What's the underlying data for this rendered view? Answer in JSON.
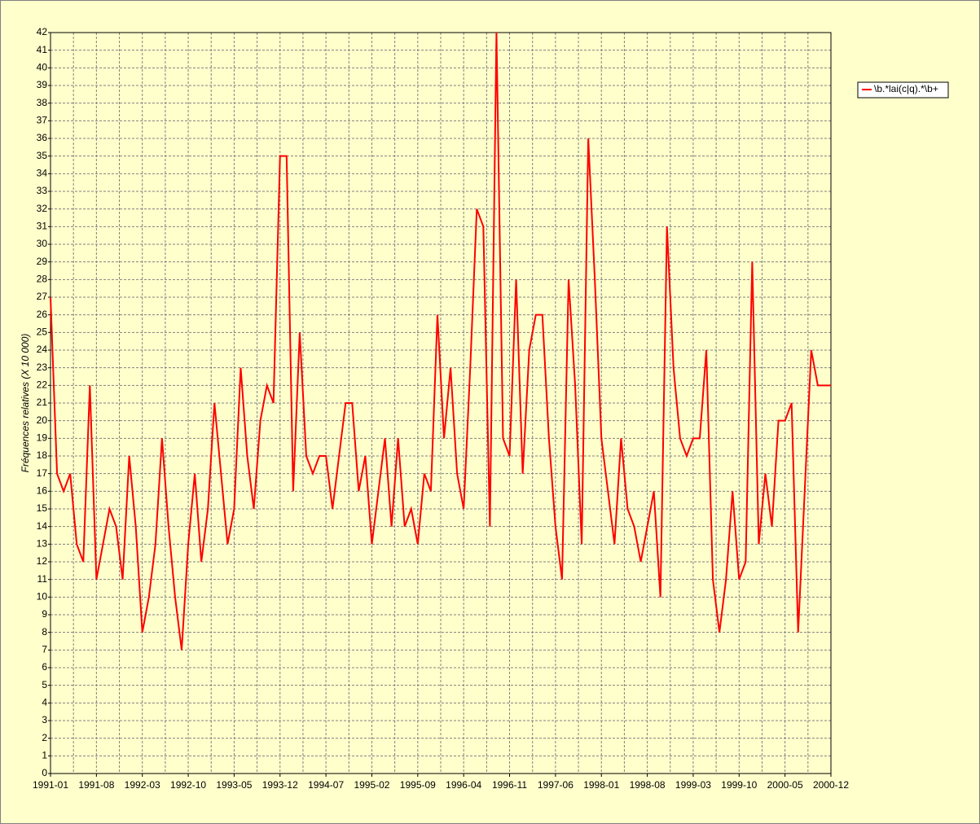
{
  "chart_data": {
    "type": "line",
    "y_label": "Fréquences relatives (X 10 000)",
    "categories": [
      "1991-01",
      null,
      null,
      null,
      null,
      null,
      null,
      "1991-08",
      null,
      null,
      null,
      null,
      null,
      null,
      "1992-03",
      null,
      null,
      null,
      null,
      null,
      null,
      "1992-10",
      null,
      null,
      null,
      null,
      null,
      null,
      "1993-05",
      null,
      null,
      null,
      null,
      null,
      null,
      "1993-12",
      null,
      null,
      null,
      null,
      null,
      null,
      "1994-07",
      null,
      null,
      null,
      null,
      null,
      null,
      "1995-02",
      null,
      null,
      null,
      null,
      null,
      null,
      "1995-09",
      null,
      null,
      null,
      null,
      null,
      null,
      "1996-04",
      null,
      null,
      null,
      null,
      null,
      null,
      "1996-11",
      null,
      null,
      null,
      null,
      null,
      null,
      "1997-06",
      null,
      null,
      null,
      null,
      null,
      null,
      "1998-01",
      null,
      null,
      null,
      null,
      null,
      null,
      "1998-08",
      null,
      null,
      null,
      null,
      null,
      null,
      "1999-03",
      null,
      null,
      null,
      null,
      null,
      null,
      "1999-10",
      null,
      null,
      null,
      null,
      null,
      null,
      "2000-05",
      null,
      null,
      null,
      null,
      null,
      null,
      "2000-12"
    ],
    "series": [
      {
        "name": "\\b.*lai(c|q).*\\b+",
        "color": "#ff0000",
        "values": [
          27,
          17,
          16,
          17,
          13,
          12,
          22,
          11,
          13,
          15,
          14,
          11,
          18,
          14,
          8,
          10,
          13,
          19,
          14,
          10,
          7,
          13,
          17,
          12,
          15,
          21,
          17,
          13,
          15,
          23,
          18,
          15,
          20,
          22,
          21,
          35,
          35,
          16,
          25,
          18,
          17,
          18,
          18,
          15,
          18,
          21,
          21,
          16,
          18,
          13,
          16,
          19,
          14,
          19,
          14,
          15,
          13,
          17,
          16,
          26,
          19,
          23,
          17,
          15,
          23,
          32,
          31,
          14,
          42,
          19,
          18,
          28,
          17,
          24,
          26,
          26,
          19,
          14,
          11,
          28,
          22,
          13,
          36,
          28,
          19,
          16,
          13,
          19,
          15,
          14,
          12,
          14,
          16,
          10,
          31,
          23,
          19,
          18,
          19,
          19,
          24,
          11,
          8,
          11,
          16,
          11,
          12,
          29,
          13,
          17,
          14,
          20,
          20,
          21,
          8,
          16,
          24,
          22,
          22,
          22
        ]
      }
    ],
    "ylim": [
      0,
      42
    ],
    "yticks": [
      0,
      1,
      2,
      3,
      4,
      5,
      6,
      7,
      8,
      9,
      10,
      11,
      12,
      13,
      14,
      15,
      16,
      17,
      18,
      19,
      20,
      21,
      22,
      23,
      24,
      25,
      26,
      27,
      28,
      29,
      30,
      31,
      32,
      33,
      34,
      35,
      36,
      37,
      38,
      39,
      40,
      41,
      42
    ],
    "grid": true,
    "legend": "top-right"
  }
}
